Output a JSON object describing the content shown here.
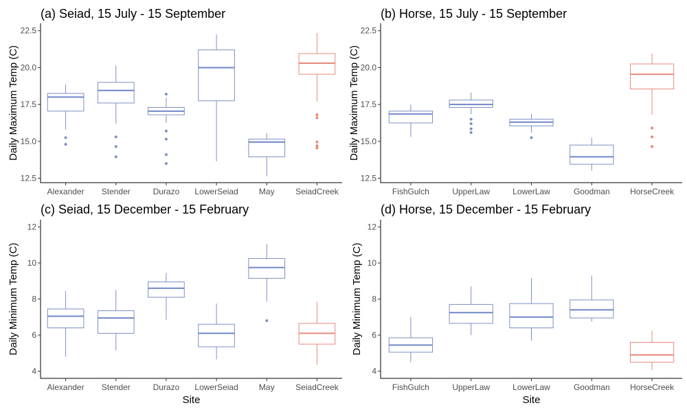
{
  "colors": {
    "box": "#7b8fc4",
    "median": "#6f86c9",
    "accent": "#e8897c",
    "axis": "#000000"
  },
  "chart_data": [
    {
      "type": "boxplot",
      "title": "(a) Seiad, 15 July - 15 September",
      "xlabel": "",
      "ylabel": "Daily Maximum Temp (C)",
      "ylim": [
        12.2,
        23.0
      ],
      "yticks": [
        12.5,
        15.0,
        17.5,
        20.0,
        22.5
      ],
      "ytick_labels": [
        "12.5",
        "15.0",
        "17.5",
        "20.0",
        "22.5"
      ],
      "categories": [
        "Alexander",
        "Stender",
        "Durazo",
        "LowerSeiad",
        "May",
        "SeiadCreek"
      ],
      "boxes": [
        {
          "whisker_low": 15.8,
          "q1": 17.05,
          "median": 18.0,
          "q3": 18.25,
          "whisker_high": 18.85,
          "outliers": [
            15.25,
            14.8
          ]
        },
        {
          "whisker_low": 16.2,
          "q1": 17.6,
          "median": 18.45,
          "q3": 19.0,
          "whisker_high": 20.15,
          "outliers": [
            15.3,
            14.65,
            13.95
          ]
        },
        {
          "whisker_low": 16.25,
          "q1": 16.8,
          "median": 17.05,
          "q3": 17.3,
          "whisker_high": 17.95,
          "outliers": [
            18.2,
            15.7,
            15.15,
            14.1,
            13.5
          ]
        },
        {
          "whisker_low": 13.65,
          "q1": 17.75,
          "median": 20.0,
          "q3": 21.2,
          "whisker_high": 22.25,
          "outliers": []
        },
        {
          "whisker_low": 12.65,
          "q1": 13.95,
          "median": 14.95,
          "q3": 15.15,
          "whisker_high": 15.55,
          "outliers": []
        },
        {
          "whisker_low": 17.7,
          "q1": 19.55,
          "median": 20.3,
          "q3": 20.95,
          "whisker_high": 22.35,
          "outliers": [
            16.8,
            16.6,
            14.95,
            14.7,
            14.55
          ],
          "accent": true
        }
      ]
    },
    {
      "type": "boxplot",
      "title": "(b) Horse, 15 July - 15 September",
      "xlabel": "",
      "ylabel": "Daily Maximum Temp (C)",
      "ylim": [
        12.2,
        23.0
      ],
      "yticks": [
        12.5,
        15.0,
        17.5,
        20.0,
        22.5
      ],
      "ytick_labels": [
        "12.5",
        "15.0",
        "17.5",
        "20.0",
        "22.5"
      ],
      "categories": [
        "FishGulch",
        "UpperLaw",
        "LowerLaw",
        "Goodman",
        "HorseCreek"
      ],
      "boxes": [
        {
          "whisker_low": 15.3,
          "q1": 16.25,
          "median": 16.85,
          "q3": 17.05,
          "whisker_high": 17.5,
          "outliers": []
        },
        {
          "whisker_low": 16.85,
          "q1": 17.3,
          "median": 17.5,
          "q3": 17.8,
          "whisker_high": 18.3,
          "outliers": [
            16.5,
            16.2,
            15.85,
            15.6
          ]
        },
        {
          "whisker_low": 15.6,
          "q1": 16.05,
          "median": 16.3,
          "q3": 16.5,
          "whisker_high": 16.85,
          "outliers": [
            15.25
          ]
        },
        {
          "whisker_low": 13.0,
          "q1": 13.45,
          "median": 13.95,
          "q3": 14.75,
          "whisker_high": 15.25,
          "outliers": []
        },
        {
          "whisker_low": 16.8,
          "q1": 18.55,
          "median": 19.55,
          "q3": 20.25,
          "whisker_high": 20.95,
          "outliers": [
            15.9,
            15.3,
            14.65
          ],
          "accent": true
        }
      ]
    },
    {
      "type": "boxplot",
      "title": "(c) Seiad, 15 December - 15 February",
      "xlabel": "Site",
      "ylabel": "Daily Minimum Temp (C)",
      "ylim": [
        3.6,
        12.4
      ],
      "yticks": [
        4,
        6,
        8,
        10,
        12
      ],
      "ytick_labels": [
        "4",
        "6",
        "8",
        "10",
        "12"
      ],
      "categories": [
        "Alexander",
        "Stender",
        "Durazo",
        "LowerSeiad",
        "May",
        "SeiadCreek"
      ],
      "boxes": [
        {
          "whisker_low": 4.8,
          "q1": 6.4,
          "median": 7.05,
          "q3": 7.45,
          "whisker_high": 8.45,
          "outliers": []
        },
        {
          "whisker_low": 5.15,
          "q1": 6.1,
          "median": 6.95,
          "q3": 7.35,
          "whisker_high": 8.5,
          "outliers": []
        },
        {
          "whisker_low": 6.85,
          "q1": 8.1,
          "median": 8.6,
          "q3": 8.95,
          "whisker_high": 9.45,
          "outliers": []
        },
        {
          "whisker_low": 4.65,
          "q1": 5.35,
          "median": 6.1,
          "q3": 6.6,
          "whisker_high": 7.75,
          "outliers": []
        },
        {
          "whisker_low": 7.85,
          "q1": 9.15,
          "median": 9.75,
          "q3": 10.25,
          "whisker_high": 11.05,
          "outliers": [
            6.8
          ]
        },
        {
          "whisker_low": 4.35,
          "q1": 5.5,
          "median": 6.1,
          "q3": 6.65,
          "whisker_high": 7.85,
          "outliers": [],
          "accent": true
        }
      ]
    },
    {
      "type": "boxplot",
      "title": "(d) Horse, 15 December - 15 February",
      "xlabel": "Site",
      "ylabel": "Daily Minimum Temp (C)",
      "ylim": [
        3.6,
        12.4
      ],
      "yticks": [
        4,
        6,
        8,
        10,
        12
      ],
      "ytick_labels": [
        "4",
        "6",
        "8",
        "10",
        "12"
      ],
      "categories": [
        "FishGulch",
        "UpperLaw",
        "LowerLaw",
        "Goodman",
        "HorseCreek"
      ],
      "boxes": [
        {
          "whisker_low": 4.5,
          "q1": 5.05,
          "median": 5.45,
          "q3": 5.85,
          "whisker_high": 7.0,
          "outliers": []
        },
        {
          "whisker_low": 6.0,
          "q1": 6.65,
          "median": 7.25,
          "q3": 7.7,
          "whisker_high": 8.7,
          "outliers": []
        },
        {
          "whisker_low": 5.7,
          "q1": 6.4,
          "median": 7.0,
          "q3": 7.75,
          "whisker_high": 9.15,
          "outliers": []
        },
        {
          "whisker_low": 6.75,
          "q1": 6.95,
          "median": 7.4,
          "q3": 7.95,
          "whisker_high": 9.3,
          "outliers": []
        },
        {
          "whisker_low": 4.05,
          "q1": 4.5,
          "median": 4.9,
          "q3": 5.6,
          "whisker_high": 6.25,
          "outliers": [],
          "accent": true
        }
      ]
    }
  ]
}
